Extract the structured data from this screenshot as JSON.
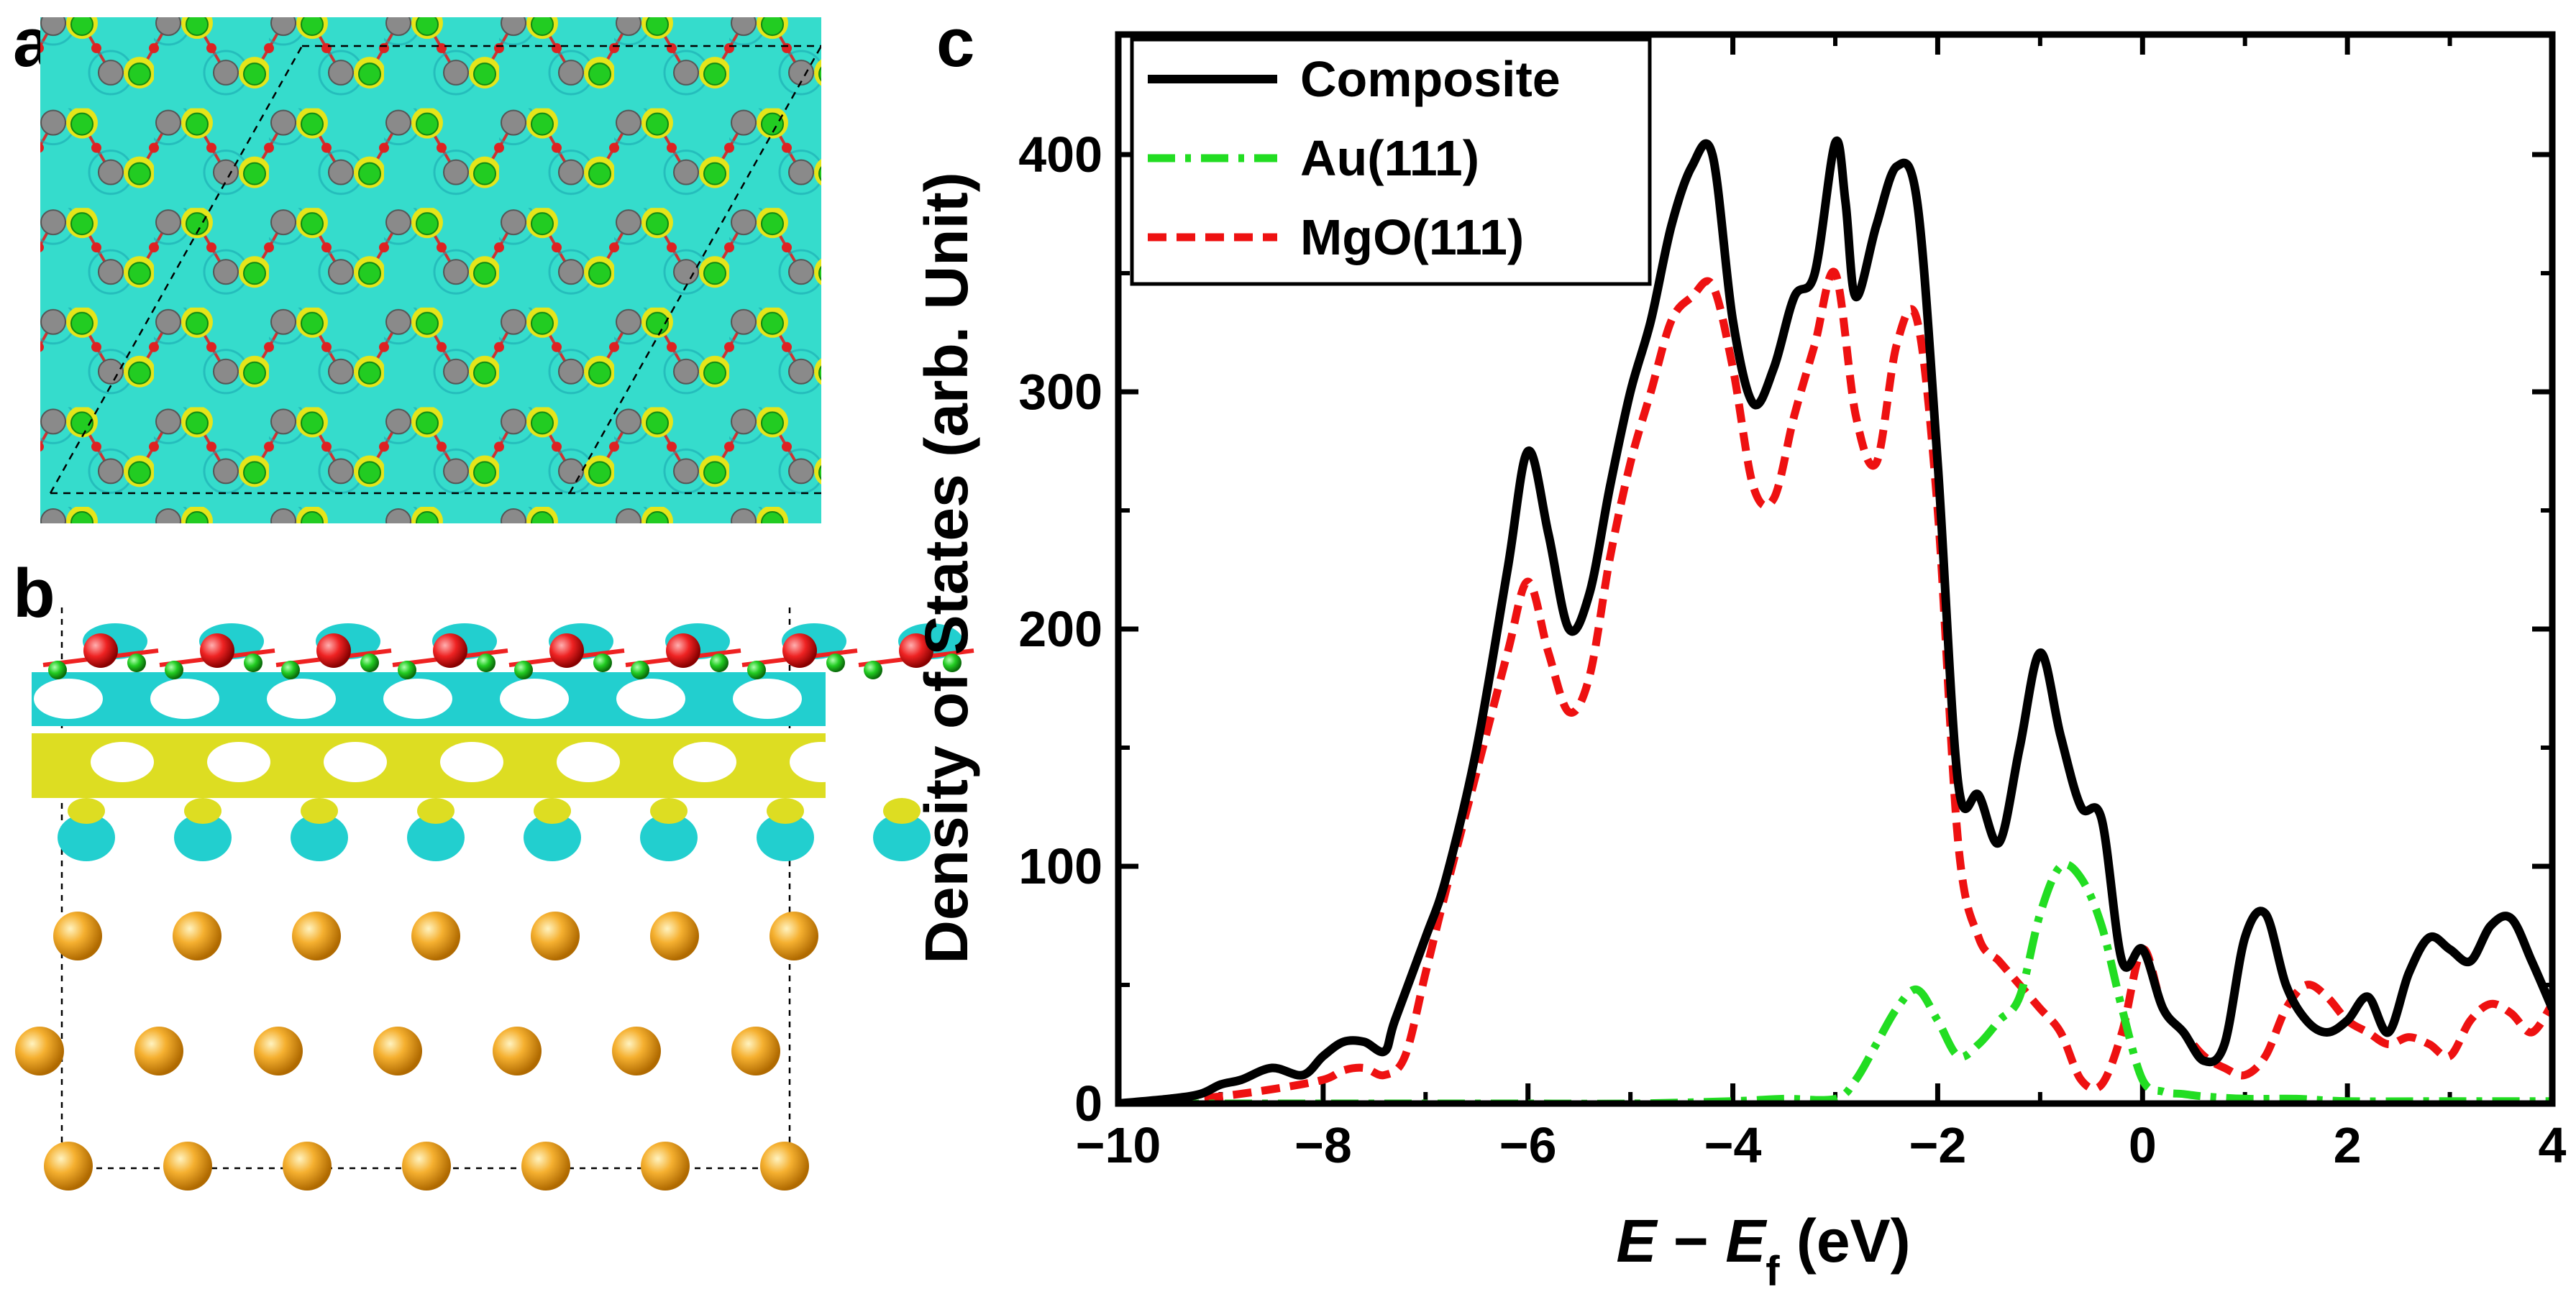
{
  "panels": {
    "a": "a",
    "b": "b",
    "c": "c"
  },
  "colors": {
    "composite": "#000000",
    "au": "#22dd22",
    "mgo": "#ee1111",
    "isosurface_cyan": "#22cfcf",
    "isosurface_yellow": "#dddd22",
    "au_atom": "#f0a020",
    "mg_atom": "#22cc22",
    "o_atom": "#ee2222",
    "grey_atom": "#8a8a8a"
  },
  "chart_data": {
    "type": "line",
    "title": "",
    "xlabel_italic_1": "E",
    "xlabel_minus": " − ",
    "xlabel_italic_2": "E",
    "xlabel_sub": "f",
    "xlabel_units": " (eV)",
    "ylabel": "Density of States (arb. Unit)",
    "xlim": [
      -10,
      4
    ],
    "ylim": [
      0,
      450
    ],
    "xticks": [
      -10,
      -8,
      -6,
      -4,
      -2,
      0,
      2,
      4
    ],
    "xtick_labels": [
      "−10",
      "−8",
      "−6",
      "−4",
      "−2",
      "0",
      "2",
      "4"
    ],
    "yticks": [
      0,
      100,
      200,
      300,
      400
    ],
    "ytick_labels": [
      "0",
      "100",
      "200",
      "300",
      "400"
    ],
    "legend_position": "top-left",
    "series": [
      {
        "name": "Composite",
        "style": "solid",
        "color": "#000000",
        "x": [
          -10,
          -9.5,
          -9.2,
          -9.0,
          -8.8,
          -8.5,
          -8.2,
          -8.0,
          -7.8,
          -7.6,
          -7.4,
          -7.3,
          -7.0,
          -6.8,
          -6.5,
          -6.2,
          -6.0,
          -5.8,
          -5.6,
          -5.4,
          -5.2,
          -5.0,
          -4.8,
          -4.6,
          -4.4,
          -4.2,
          -4.0,
          -3.8,
          -3.6,
          -3.4,
          -3.2,
          -3.0,
          -2.9,
          -2.8,
          -2.6,
          -2.4,
          -2.2,
          -2.0,
          -1.8,
          -1.6,
          -1.4,
          -1.2,
          -1.0,
          -0.8,
          -0.6,
          -0.4,
          -0.2,
          0.0,
          0.2,
          0.4,
          0.6,
          0.8,
          1.0,
          1.2,
          1.4,
          1.6,
          1.8,
          2.0,
          2.2,
          2.4,
          2.6,
          2.8,
          3.0,
          3.2,
          3.4,
          3.6,
          3.8,
          4.0
        ],
        "values": [
          0,
          2,
          4,
          8,
          10,
          15,
          12,
          20,
          26,
          26,
          22,
          35,
          70,
          95,
          150,
          225,
          275,
          240,
          200,
          215,
          260,
          300,
          330,
          370,
          395,
          400,
          330,
          295,
          310,
          340,
          350,
          405,
          380,
          340,
          370,
          395,
          380,
          270,
          135,
          130,
          110,
          150,
          190,
          155,
          125,
          120,
          60,
          65,
          40,
          30,
          18,
          25,
          70,
          80,
          50,
          35,
          30,
          35,
          45,
          30,
          55,
          70,
          65,
          60,
          75,
          78,
          60,
          40
        ]
      },
      {
        "name": "Au(111)",
        "style": "dashdot",
        "color": "#22dd22",
        "x": [
          -10,
          -9.0,
          -8.0,
          -7.0,
          -6.0,
          -5.0,
          -4.0,
          -3.5,
          -3.0,
          -2.8,
          -2.6,
          -2.4,
          -2.2,
          -2.0,
          -1.8,
          -1.6,
          -1.4,
          -1.2,
          -1.0,
          -0.8,
          -0.6,
          -0.4,
          -0.2,
          0.0,
          0.2,
          0.4,
          0.6,
          1.0,
          1.5,
          2.0,
          3.0,
          4.0
        ],
        "values": [
          0,
          0,
          0,
          0,
          0,
          0,
          1,
          2,
          2,
          10,
          25,
          40,
          48,
          35,
          20,
          25,
          35,
          45,
          80,
          100,
          95,
          75,
          40,
          10,
          5,
          4,
          3,
          2,
          2,
          1,
          1,
          1
        ]
      },
      {
        "name": "MgO(111)",
        "style": "dashed",
        "color": "#ee1111",
        "x": [
          -10,
          -9.5,
          -9.0,
          -8.5,
          -8.0,
          -7.8,
          -7.6,
          -7.4,
          -7.2,
          -7.0,
          -6.8,
          -6.5,
          -6.2,
          -6.0,
          -5.8,
          -5.6,
          -5.4,
          -5.2,
          -5.0,
          -4.8,
          -4.6,
          -4.4,
          -4.2,
          -4.0,
          -3.8,
          -3.6,
          -3.4,
          -3.2,
          -3.0,
          -2.8,
          -2.6,
          -2.4,
          -2.2,
          -2.0,
          -1.8,
          -1.6,
          -1.4,
          -1.2,
          -1.0,
          -0.8,
          -0.6,
          -0.4,
          -0.2,
          0.0,
          0.2,
          0.4,
          0.6,
          0.8,
          1.0,
          1.2,
          1.4,
          1.6,
          1.8,
          2.0,
          2.2,
          2.4,
          2.6,
          2.8,
          3.0,
          3.2,
          3.4,
          3.6,
          3.8,
          4.0
        ],
        "values": [
          0,
          1,
          3,
          6,
          10,
          14,
          15,
          12,
          20,
          55,
          90,
          140,
          190,
          220,
          190,
          165,
          180,
          230,
          270,
          300,
          330,
          340,
          345,
          310,
          260,
          255,
          290,
          320,
          350,
          290,
          270,
          320,
          330,
          250,
          110,
          70,
          60,
          50,
          40,
          30,
          10,
          8,
          30,
          65,
          40,
          30,
          20,
          15,
          12,
          20,
          40,
          50,
          45,
          35,
          30,
          25,
          28,
          25,
          20,
          35,
          42,
          38,
          30,
          42
        ]
      }
    ]
  }
}
